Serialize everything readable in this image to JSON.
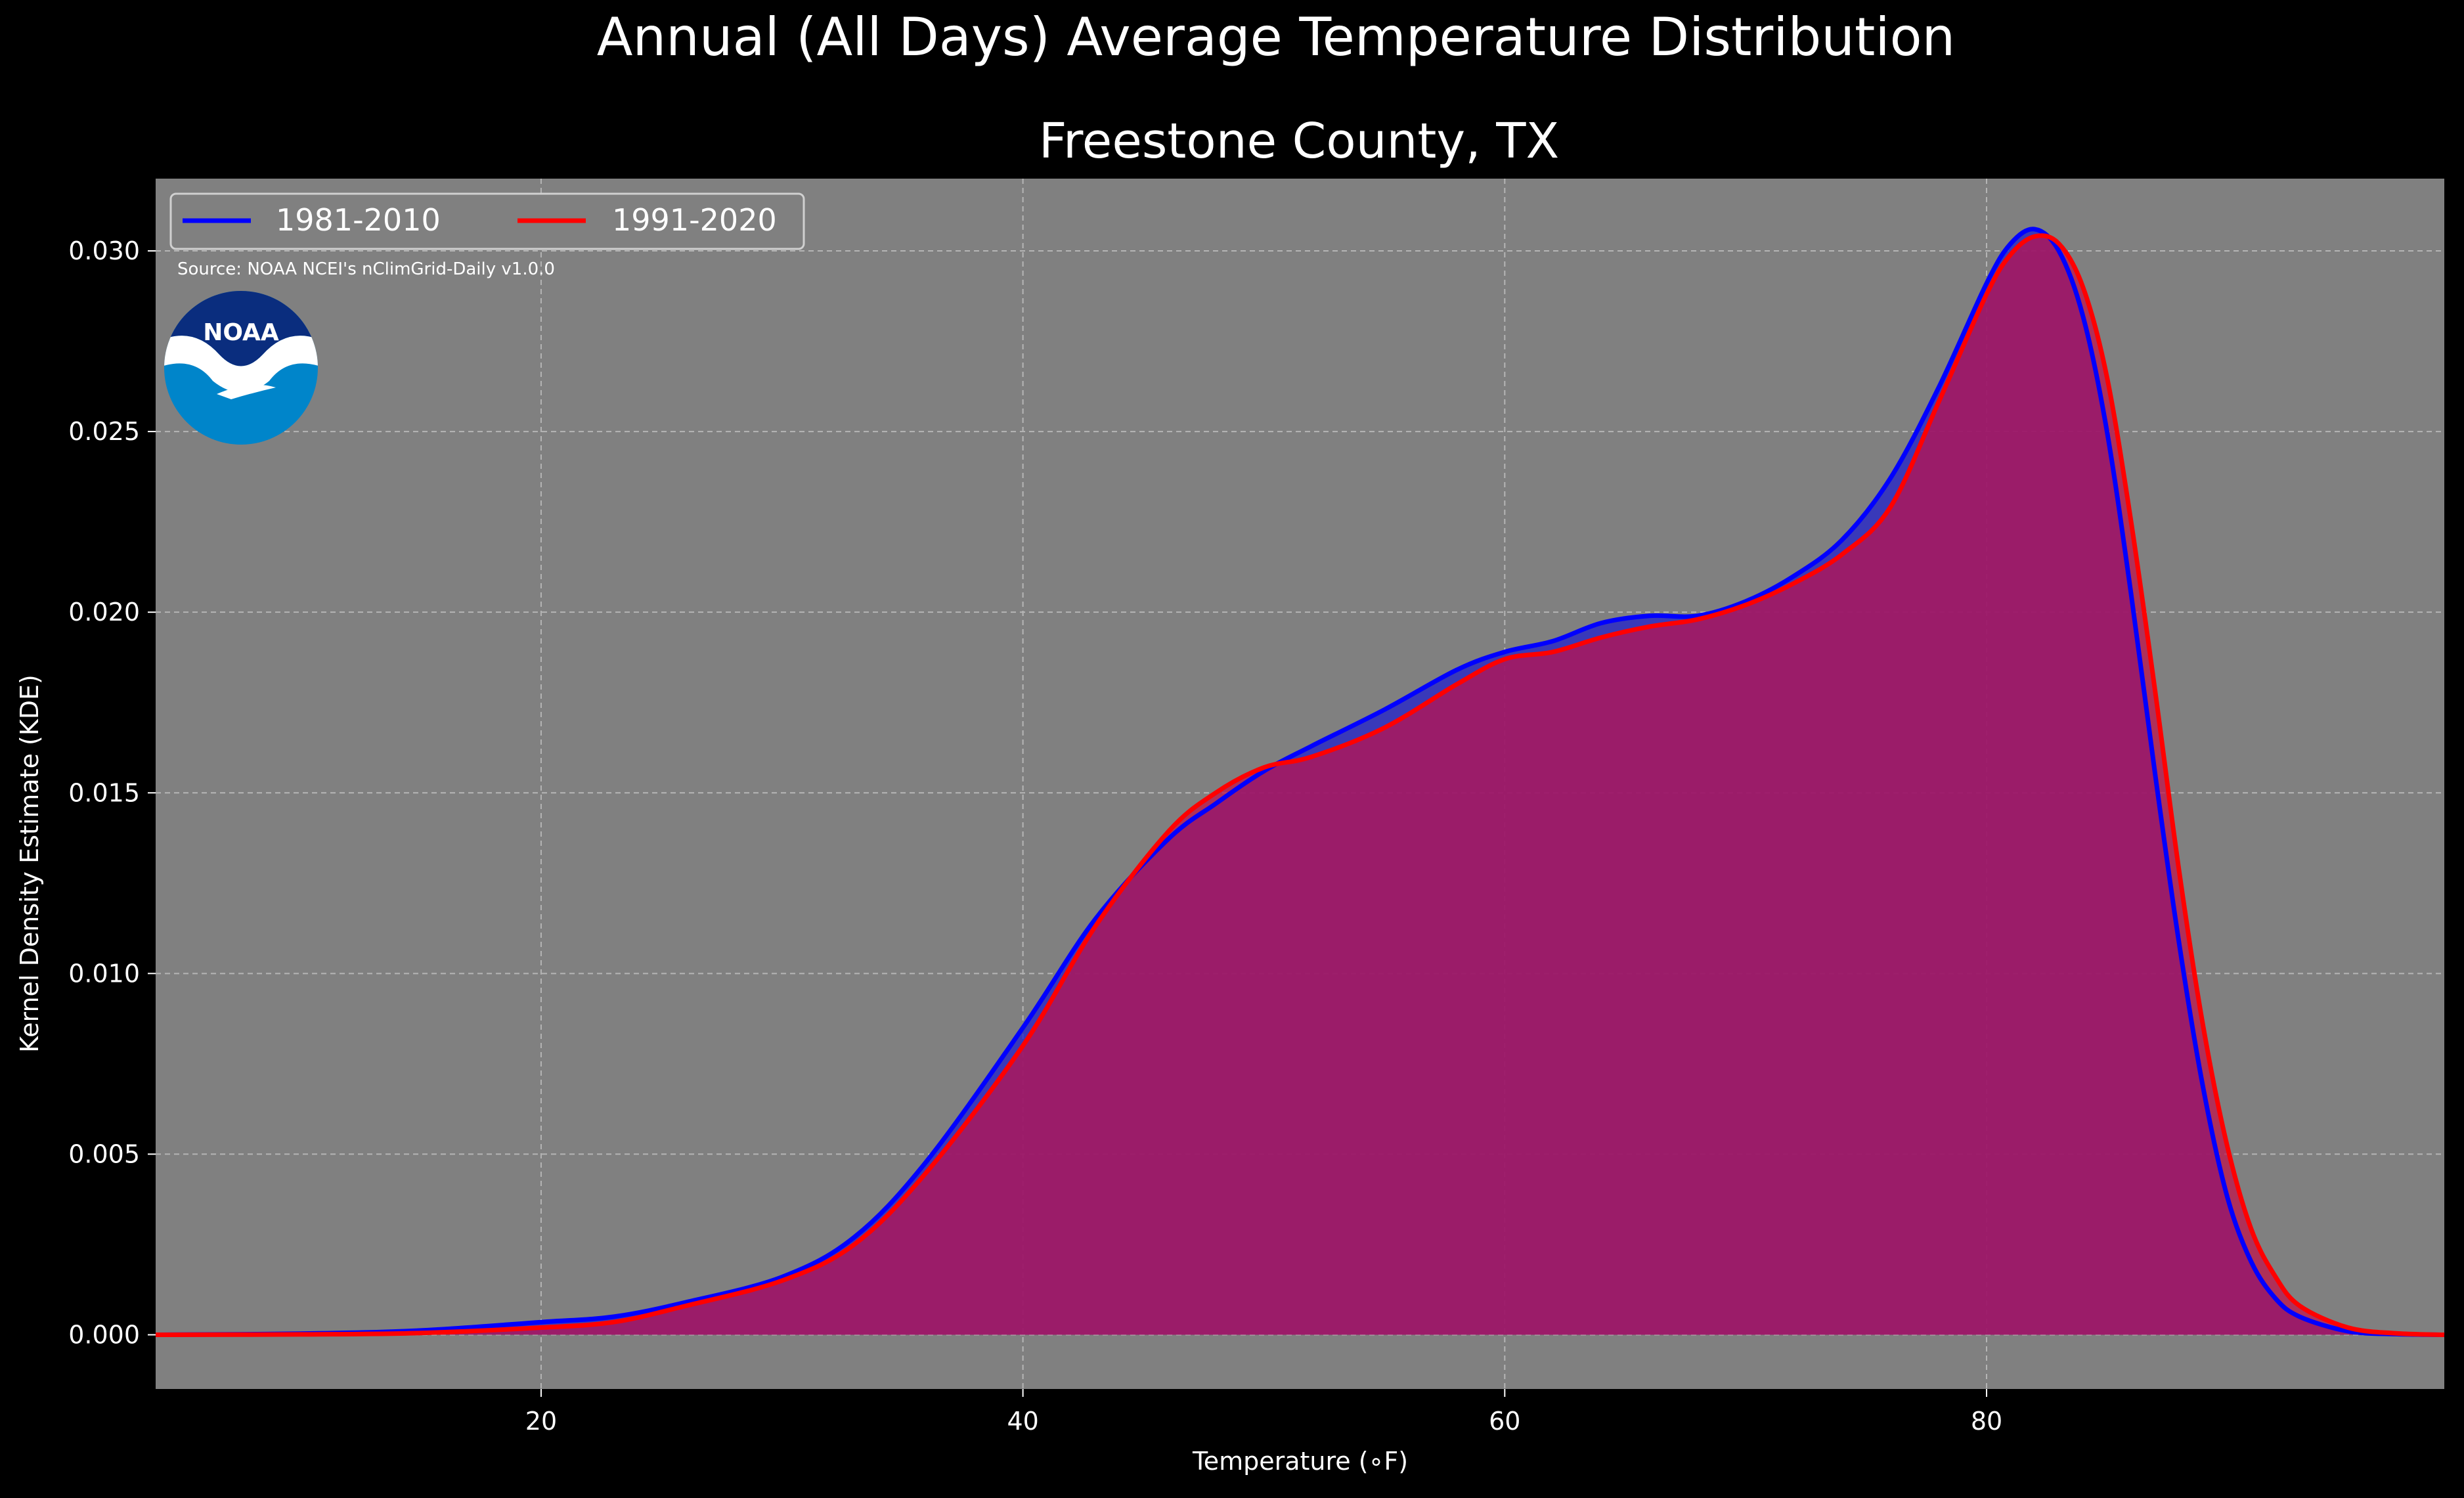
{
  "figure": {
    "suptitle": "Annual (All Days) Average Temperature Distribution",
    "title": "Freestone County, TX",
    "source": "Source: NOAA NCEI's nClimGrid-Daily v1.0.0",
    "logo_text": "NOAA"
  },
  "colors": {
    "background": "#000000",
    "plot_background": "#808080",
    "grid": "#b5b5b5",
    "series_1981_2010": "#0000ff",
    "series_1991_2020": "#ff0000",
    "fill_1981_2010": "#2222cc",
    "fill_1991_2020": "#c0104a",
    "noaa_dark_blue": "#0a2d7e",
    "noaa_light_blue": "#0085ca"
  },
  "chart_data": {
    "type": "area",
    "title": "Freestone County, TX",
    "suptitle": "Annual (All Days) Average Temperature Distribution",
    "xlabel": "Temperature (∘F)",
    "ylabel": "Kernel Density Estimate (KDE)",
    "xlim": [
      4,
      99
    ],
    "ylim": [
      -0.0015,
      0.032
    ],
    "xticks": [
      20,
      40,
      60,
      80
    ],
    "xtick_labels": [
      "20",
      "40",
      "60",
      "80"
    ],
    "yticks": [
      0.0,
      0.005,
      0.01,
      0.015,
      0.02,
      0.025,
      0.03
    ],
    "ytick_labels": [
      "0.000",
      "0.005",
      "0.010",
      "0.015",
      "0.020",
      "0.025",
      "0.030"
    ],
    "grid": true,
    "legend_position": "upper-left",
    "legend_ncol": 2,
    "series": [
      {
        "name": "1981-2010",
        "color": "#0000ff",
        "x": [
          4,
          10,
          15,
          20,
          23,
          26,
          30,
          33,
          36,
          40,
          43,
          46,
          48,
          50,
          52,
          55,
          58,
          60,
          62,
          64,
          66,
          68,
          70,
          72,
          74,
          76,
          78,
          80,
          81,
          82,
          83,
          84,
          85,
          86,
          87,
          88,
          89,
          90,
          91,
          92,
          93,
          95,
          97,
          99
        ],
        "y": [
          0.0,
          3e-05,
          0.00012,
          0.00035,
          0.0005,
          0.0009,
          0.0016,
          0.0027,
          0.0048,
          0.0085,
          0.0115,
          0.0137,
          0.0147,
          0.0156,
          0.0163,
          0.0173,
          0.0184,
          0.0189,
          0.0192,
          0.0197,
          0.0199,
          0.0199,
          0.0203,
          0.021,
          0.022,
          0.0237,
          0.0262,
          0.0291,
          0.0302,
          0.0306,
          0.03,
          0.0282,
          0.025,
          0.0205,
          0.0155,
          0.0108,
          0.0068,
          0.0038,
          0.002,
          0.001,
          0.0005,
          0.0001,
          2e-05,
          0.0
        ]
      },
      {
        "name": "1991-2020",
        "color": "#ff0000",
        "x": [
          4,
          10,
          15,
          20,
          23,
          26,
          30,
          33,
          36,
          40,
          43,
          46,
          48,
          50,
          52,
          55,
          58,
          60,
          62,
          64,
          66,
          68,
          70,
          72,
          74,
          76,
          78,
          80,
          81,
          82,
          83,
          84,
          85,
          86,
          87,
          88,
          89,
          90,
          91,
          92,
          93,
          95,
          97,
          99
        ],
        "y": [
          0.0,
          1e-05,
          5e-05,
          0.0002,
          0.00035,
          0.0008,
          0.0015,
          0.0025,
          0.0045,
          0.008,
          0.0113,
          0.0139,
          0.015,
          0.0157,
          0.016,
          0.0168,
          0.018,
          0.0187,
          0.0189,
          0.0193,
          0.0196,
          0.0198,
          0.0202,
          0.0208,
          0.0216,
          0.0229,
          0.0258,
          0.0288,
          0.0299,
          0.0304,
          0.0302,
          0.029,
          0.0265,
          0.0225,
          0.0178,
          0.0128,
          0.0085,
          0.0052,
          0.0029,
          0.0016,
          0.0008,
          0.0002,
          4e-05,
          0.0
        ]
      }
    ]
  }
}
